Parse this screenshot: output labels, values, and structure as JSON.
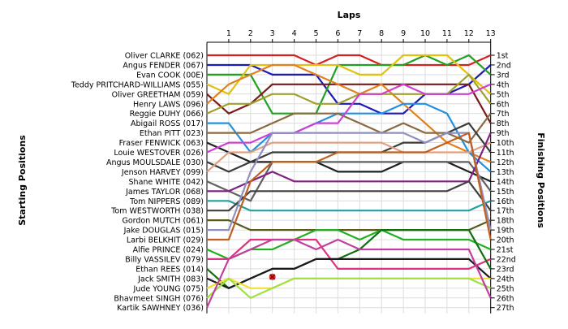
{
  "chart_data": {
    "type": "line",
    "xlabel": "Laps",
    "ylabel_left": "Starting Positions",
    "ylabel_right": "Finishing Positions",
    "laps": [
      1,
      2,
      3,
      4,
      5,
      6,
      7,
      8,
      9,
      10,
      11,
      12,
      13
    ],
    "drivers": [
      "Oliver CLARKE (062)",
      "Angus FENDER (067)",
      "Evan COOK (00E)",
      "Teddy PRITCHARD-WILLIAMS (055)",
      "Oliver GREETHAM (059)",
      "Henry LAWS (096)",
      "Reggie DUHY (066)",
      "Abigail ROSS (017)",
      "Ethan PITT (023)",
      "Fraser FENWICK (063)",
      "Louie WESTOVER (026)",
      "Angus MOULSDALE (030)",
      "Jenson HARVEY (099)",
      "Shane WHITE (042)",
      "James TAYLOR (068)",
      "Tom NIPPERS (089)",
      "Tom WESTWORTH (038)",
      "Gordon MUTCH (061)",
      "Jake DOUGLAS (015)",
      "Larbi BELKHIT (029)",
      "Alfie PRINCE (024)",
      "Billy VASSILEV (079)",
      "Ethan REES (014)",
      "Jack SMITH (083)",
      "Jude YOUNG (075)",
      "Bhavmeet SINGH (076)",
      "Kartik SAWHNEY (036)"
    ],
    "finishing_labels": [
      "1st",
      "2nd",
      "3rd",
      "4th",
      "5th",
      "6th",
      "7th",
      "8th",
      "9th",
      "10th",
      "11th",
      "12th",
      "13th",
      "14th",
      "15th",
      "16th",
      "17th",
      "18th",
      "19th",
      "20th",
      "21st",
      "22nd",
      "23rd",
      "24th",
      "25th",
      "26th",
      "27th"
    ],
    "series": [
      {
        "color": "#d42020",
        "positions": [
          1,
          1,
          1,
          1,
          1,
          2,
          1,
          1,
          2,
          2,
          2,
          2,
          2,
          1
        ]
      },
      {
        "color": "#1a1ab8",
        "positions": [
          2,
          2,
          2,
          3,
          3,
          3,
          6,
          6,
          7,
          7,
          5,
          5,
          4,
          2
        ]
      },
      {
        "color": "#22a022",
        "positions": [
          3,
          3,
          3,
          7,
          7,
          7,
          2,
          2,
          2,
          2,
          1,
          2,
          1,
          3
        ]
      },
      {
        "color": "#e0c010",
        "positions": [
          4,
          5,
          2,
          2,
          2,
          2,
          2,
          3,
          3,
          1,
          1,
          1,
          3,
          5
        ]
      },
      {
        "color": "#7a1a1a",
        "positions": [
          5,
          7,
          6,
          4,
          4,
          4,
          4,
          4,
          4,
          4,
          4,
          4,
          4,
          8
        ]
      },
      {
        "color": "#e08020",
        "positions": [
          6,
          4,
          3,
          2,
          2,
          3,
          4,
          5,
          4,
          6,
          8,
          10,
          11,
          12
        ]
      },
      {
        "color": "#a0a030",
        "positions": [
          7,
          6,
          6,
          5,
          5,
          6,
          6,
          5,
          5,
          5,
          5,
          5,
          3,
          6
        ]
      },
      {
        "color": "#2090e0",
        "positions": [
          8,
          8,
          11,
          9,
          9,
          8,
          7,
          7,
          7,
          6,
          6,
          7,
          11,
          13
        ]
      },
      {
        "color": "#8a6a40",
        "positions": [
          9,
          9,
          9,
          8,
          7,
          7,
          7,
          8,
          9,
          8,
          9,
          9,
          10,
          7
        ]
      },
      {
        "color": "#202020",
        "positions": [
          10,
          11,
          12,
          12,
          12,
          12,
          13,
          13,
          13,
          12,
          12,
          12,
          13,
          14
        ]
      },
      {
        "color": "#d040d0",
        "positions": [
          11,
          10,
          10,
          9,
          9,
          8,
          8,
          5,
          5,
          4,
          5,
          5,
          5,
          4
        ]
      },
      {
        "color": "#3a3a3a",
        "positions": [
          12,
          13,
          12,
          11,
          11,
          11,
          11,
          11,
          11,
          10,
          10,
          9,
          8,
          11
        ]
      },
      {
        "color": "#e0a080",
        "positions": [
          13,
          11,
          11,
          10,
          10,
          10,
          10,
          10,
          10,
          11,
          11,
          11,
          11,
          10
        ]
      },
      {
        "color": "#606060",
        "positions": [
          14,
          15,
          16,
          12,
          12,
          12,
          12,
          12,
          12,
          12,
          12,
          12,
          12,
          15
        ]
      },
      {
        "color": "#802080",
        "positions": [
          15,
          15,
          14,
          13,
          14,
          14,
          14,
          14,
          14,
          14,
          14,
          14,
          14,
          9
        ]
      },
      {
        "color": "#20a0a0",
        "positions": [
          16,
          16,
          17,
          17,
          17,
          17,
          17,
          17,
          17,
          17,
          17,
          17,
          17,
          16
        ]
      },
      {
        "color": "#404040",
        "positions": [
          17,
          17,
          15,
          15,
          15,
          15,
          15,
          15,
          15,
          15,
          15,
          15,
          14,
          17
        ]
      },
      {
        "color": "#5a5a1a",
        "positions": [
          18,
          18,
          19,
          19,
          19,
          19,
          19,
          19,
          19,
          19,
          19,
          19,
          19,
          18
        ]
      },
      {
        "color": "#9090c0",
        "positions": [
          19,
          19,
          13,
          9,
          9,
          9,
          9,
          9,
          9,
          9,
          10,
          9,
          9,
          19
        ]
      },
      {
        "color": "#c06020",
        "positions": [
          20,
          20,
          14,
          12,
          12,
          12,
          11,
          11,
          11,
          11,
          11,
          10,
          9,
          20
        ]
      },
      {
        "color": "#20b020",
        "positions": [
          21,
          22,
          21,
          21,
          20,
          19,
          19,
          20,
          19,
          20,
          20,
          20,
          20,
          21
        ]
      },
      {
        "color": "#e03080",
        "positions": [
          22,
          22,
          20,
          20,
          20,
          20,
          23,
          23,
          23,
          23,
          23,
          23,
          23,
          22
        ]
      },
      {
        "color": "#107010",
        "positions": [
          23,
          25,
          24,
          23,
          23,
          22,
          22,
          21,
          19,
          19,
          19,
          19,
          19,
          23
        ]
      },
      {
        "color": "#1a1a1a",
        "positions": [
          24,
          25,
          24,
          23,
          23,
          22,
          22,
          22,
          22,
          22,
          22,
          22,
          22,
          24
        ]
      },
      {
        "color": "#f0e030",
        "positions": [
          25,
          24,
          25,
          25,
          24,
          24,
          24,
          24,
          24,
          24,
          24,
          24,
          24,
          24
        ]
      },
      {
        "color": "#a0e040",
        "positions": [
          26,
          24,
          26,
          25,
          24,
          24,
          24,
          24,
          24,
          24,
          24,
          24,
          24,
          25
        ]
      },
      {
        "color": "#c040a0",
        "positions": [
          27,
          22,
          21,
          20,
          20,
          21,
          20,
          21,
          21,
          21,
          21,
          21,
          21,
          26
        ]
      }
    ],
    "retired": [
      {
        "driver_index": 24,
        "lap": 3,
        "position": 24
      }
    ]
  }
}
